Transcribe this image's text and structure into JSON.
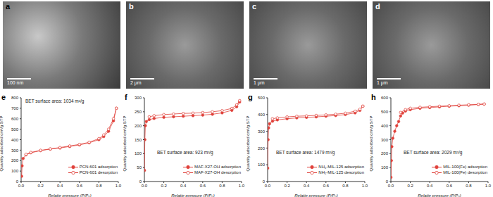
{
  "images": [
    {
      "label": "a",
      "scale_bar": "100 nm"
    },
    {
      "label": "b",
      "scale_bar": "2 μm"
    },
    {
      "label": "c",
      "scale_bar": "1 μm"
    },
    {
      "label": "d",
      "scale_bar": "1 μm"
    }
  ],
  "chart_data": [
    {
      "type": "line",
      "label": "e",
      "annotation": "BET surface area: 1034 m²/g",
      "x_label": "Relatie pressure (P/P₀)",
      "y_label": "Quantity adsorbed cm³/g STP",
      "xlim": [
        0,
        1
      ],
      "xticks": [
        {
          "value": 0,
          "label": "0.0"
        },
        0.2,
        0.4,
        0.6,
        0.8,
        {
          "value": 1,
          "label": "1.0"
        }
      ],
      "ylim": [
        0,
        800
      ],
      "yticks": [
        0,
        100,
        200,
        300,
        400,
        500,
        600,
        700,
        800
      ],
      "legend": "lower right",
      "series": [
        {
          "name": "PCN-601 adsorption",
          "color": "#e0403a",
          "marker": "circle",
          "x": [
            0.005,
            0.01,
            0.02,
            0.05,
            0.1,
            0.2,
            0.3,
            0.4,
            0.5,
            0.6,
            0.7,
            0.8,
            0.85,
            0.9,
            0.95,
            0.98
          ],
          "values": [
            50,
            150,
            220,
            255,
            275,
            295,
            310,
            320,
            335,
            350,
            370,
            400,
            430,
            480,
            580,
            700
          ]
        },
        {
          "name": "PCN-601 desorption",
          "color": "#e0403a",
          "marker": "open_circle",
          "x": [
            0.98,
            0.95,
            0.9,
            0.85,
            0.8,
            0.7,
            0.6,
            0.5,
            0.4,
            0.3,
            0.2,
            0.1,
            0.05
          ],
          "values": [
            700,
            600,
            500,
            445,
            410,
            375,
            355,
            340,
            325,
            312,
            298,
            278,
            260
          ]
        }
      ]
    },
    {
      "type": "line",
      "label": "f",
      "annotation": "BET surface area: 923 m²/g",
      "x_label": "Relatie pressure (P/P₀)",
      "y_label": "Quantity adsorbed cm³/g STP",
      "xlim": [
        0,
        1
      ],
      "xticks": [
        {
          "value": 0,
          "label": "0.0"
        },
        0.2,
        0.4,
        0.6,
        0.8,
        {
          "value": 1,
          "label": "1.0"
        }
      ],
      "ylim": [
        0,
        300
      ],
      "yticks": [
        0,
        50,
        100,
        150,
        200,
        250,
        300
      ],
      "legend": "lower right",
      "series": [
        {
          "name": "MAF-X27-OH adsorption",
          "color": "#e0403a",
          "marker": "circle",
          "x": [
            0.001,
            0.005,
            0.01,
            0.02,
            0.05,
            0.1,
            0.2,
            0.3,
            0.4,
            0.5,
            0.6,
            0.7,
            0.8,
            0.9,
            0.95,
            0.98
          ],
          "values": [
            40,
            150,
            200,
            215,
            222,
            226,
            230,
            232,
            234,
            236,
            238,
            241,
            246,
            255,
            268,
            285
          ]
        },
        {
          "name": "MAF-X27-OH desorption",
          "color": "#e0403a",
          "marker": "open_circle",
          "x": [
            0.98,
            0.95,
            0.9,
            0.8,
            0.7,
            0.6,
            0.5,
            0.4,
            0.3,
            0.2,
            0.1,
            0.05
          ],
          "values": [
            290,
            275,
            262,
            254,
            250,
            247,
            245,
            244,
            242,
            240,
            236,
            232
          ]
        }
      ]
    },
    {
      "type": "line",
      "label": "g",
      "annotation": "BET surface area: 1479 m²/g",
      "x_label": "Relatie pressure (P/P₀)",
      "y_label": "Quantity adsorbed cm³/g STP",
      "xlim": [
        0,
        1
      ],
      "xticks": [
        {
          "value": 0,
          "label": "0.0"
        },
        0.2,
        0.4,
        0.6,
        0.8,
        {
          "value": 1,
          "label": "1.0"
        }
      ],
      "ylim": [
        0,
        500
      ],
      "yticks": [
        0,
        100,
        200,
        300,
        400,
        500
      ],
      "legend": "lower right",
      "series": [
        {
          "name": "NH₂-MIL-125 adsorption",
          "color": "#e0403a",
          "marker": "circle",
          "x": [
            0.001,
            0.005,
            0.01,
            0.02,
            0.05,
            0.1,
            0.2,
            0.3,
            0.4,
            0.5,
            0.6,
            0.7,
            0.8,
            0.9,
            0.95,
            0.98
          ],
          "values": [
            80,
            250,
            320,
            345,
            360,
            368,
            375,
            380,
            383,
            386,
            390,
            394,
            400,
            410,
            425,
            450
          ]
        },
        {
          "name": "NH₂-MIL-125 desorption",
          "color": "#e0403a",
          "marker": "open_circle",
          "x": [
            0.98,
            0.95,
            0.9,
            0.8,
            0.7,
            0.6,
            0.5,
            0.4,
            0.3,
            0.2,
            0.1,
            0.05
          ],
          "values": [
            450,
            432,
            420,
            408,
            402,
            398,
            395,
            392,
            390,
            386,
            380,
            375
          ]
        }
      ]
    },
    {
      "type": "line",
      "label": "h",
      "annotation": "BET surface area: 2029 m²/g",
      "x_label": "Relatie pressure (P/P₀)",
      "y_label": "Quantity adsorbed cm³/g STP",
      "xlim": [
        0,
        1
      ],
      "xticks": [
        {
          "value": 0,
          "label": "0.0"
        },
        0.2,
        0.4,
        0.6,
        0.8,
        {
          "value": 1,
          "label": "1.0"
        }
      ],
      "ylim": [
        0,
        600
      ],
      "yticks": [
        0,
        100,
        200,
        300,
        400,
        500,
        600
      ],
      "legend": "lower right",
      "series": [
        {
          "name": "MIL-100(Fe) adsorption",
          "color": "#e0403a",
          "marker": "circle",
          "x": [
            0.001,
            0.005,
            0.01,
            0.02,
            0.04,
            0.06,
            0.08,
            0.1,
            0.12,
            0.15,
            0.2,
            0.3,
            0.4,
            0.5,
            0.6,
            0.7,
            0.8,
            0.9,
            0.96
          ],
          "values": [
            30,
            150,
            250,
            310,
            360,
            400,
            430,
            470,
            490,
            505,
            515,
            525,
            530,
            535,
            540,
            543,
            547,
            552,
            555
          ]
        },
        {
          "name": "MIL-100(Fe) desorption",
          "color": "#e0403a",
          "marker": "open_circle",
          "x": [
            0.96,
            0.9,
            0.8,
            0.7,
            0.6,
            0.5,
            0.4,
            0.3,
            0.2,
            0.15,
            0.1
          ],
          "values": [
            555,
            553,
            550,
            547,
            543,
            540,
            536,
            532,
            525,
            515,
            495
          ]
        }
      ]
    }
  ]
}
